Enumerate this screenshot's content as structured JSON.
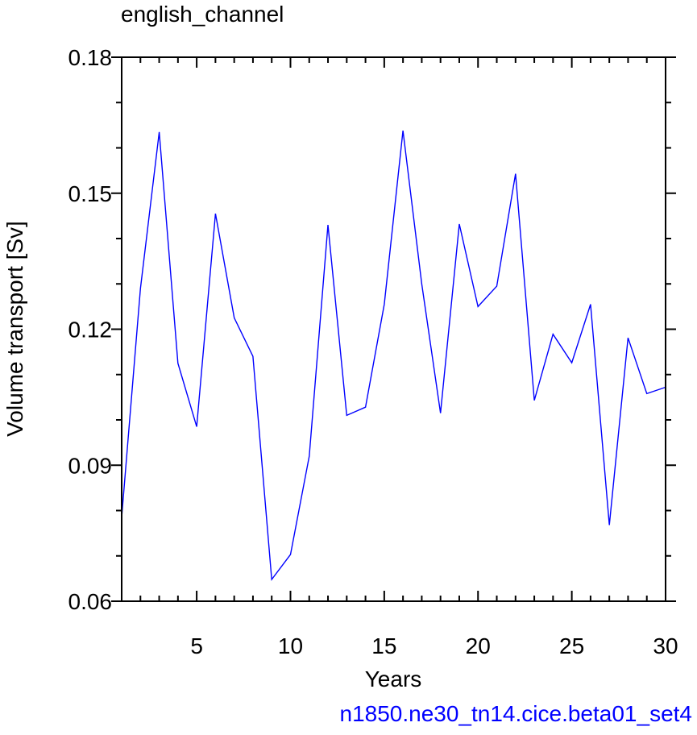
{
  "chart_data": {
    "type": "line",
    "title": "english_channel",
    "xlabel": "Years",
    "ylabel": "Volume transport [Sv]",
    "xlim": [
      1,
      30
    ],
    "ylim": [
      0.06,
      0.18
    ],
    "x_ticks": [
      5,
      10,
      15,
      20,
      25,
      30
    ],
    "y_ticks": [
      0.06,
      0.09,
      0.12,
      0.15,
      0.18
    ],
    "y_tick_labels": [
      "0.06",
      "0.09",
      "0.12",
      "0.15",
      "0.18"
    ],
    "grid": false,
    "series": [
      {
        "color": "#0000ff",
        "x": [
          1,
          2,
          3,
          4,
          5,
          6,
          7,
          8,
          9,
          10,
          11,
          12,
          13,
          14,
          15,
          16,
          17,
          18,
          19,
          20,
          21,
          22,
          23,
          24,
          25,
          26,
          27,
          28,
          29,
          30
        ],
        "values": [
          0.0785,
          0.129,
          0.1635,
          0.1125,
          0.0985,
          0.1455,
          0.1225,
          0.114,
          0.0648,
          0.0703,
          0.092,
          0.143,
          0.101,
          0.1028,
          0.1255,
          0.1638,
          0.13,
          0.1015,
          0.1432,
          0.125,
          0.1295,
          0.1543,
          0.1043,
          0.1189,
          0.1126,
          0.1255,
          0.0768,
          0.1181,
          0.1058,
          0.1072
        ]
      }
    ]
  },
  "footer_text": "n1850.ne30_tn14.cice.beta01_set4"
}
